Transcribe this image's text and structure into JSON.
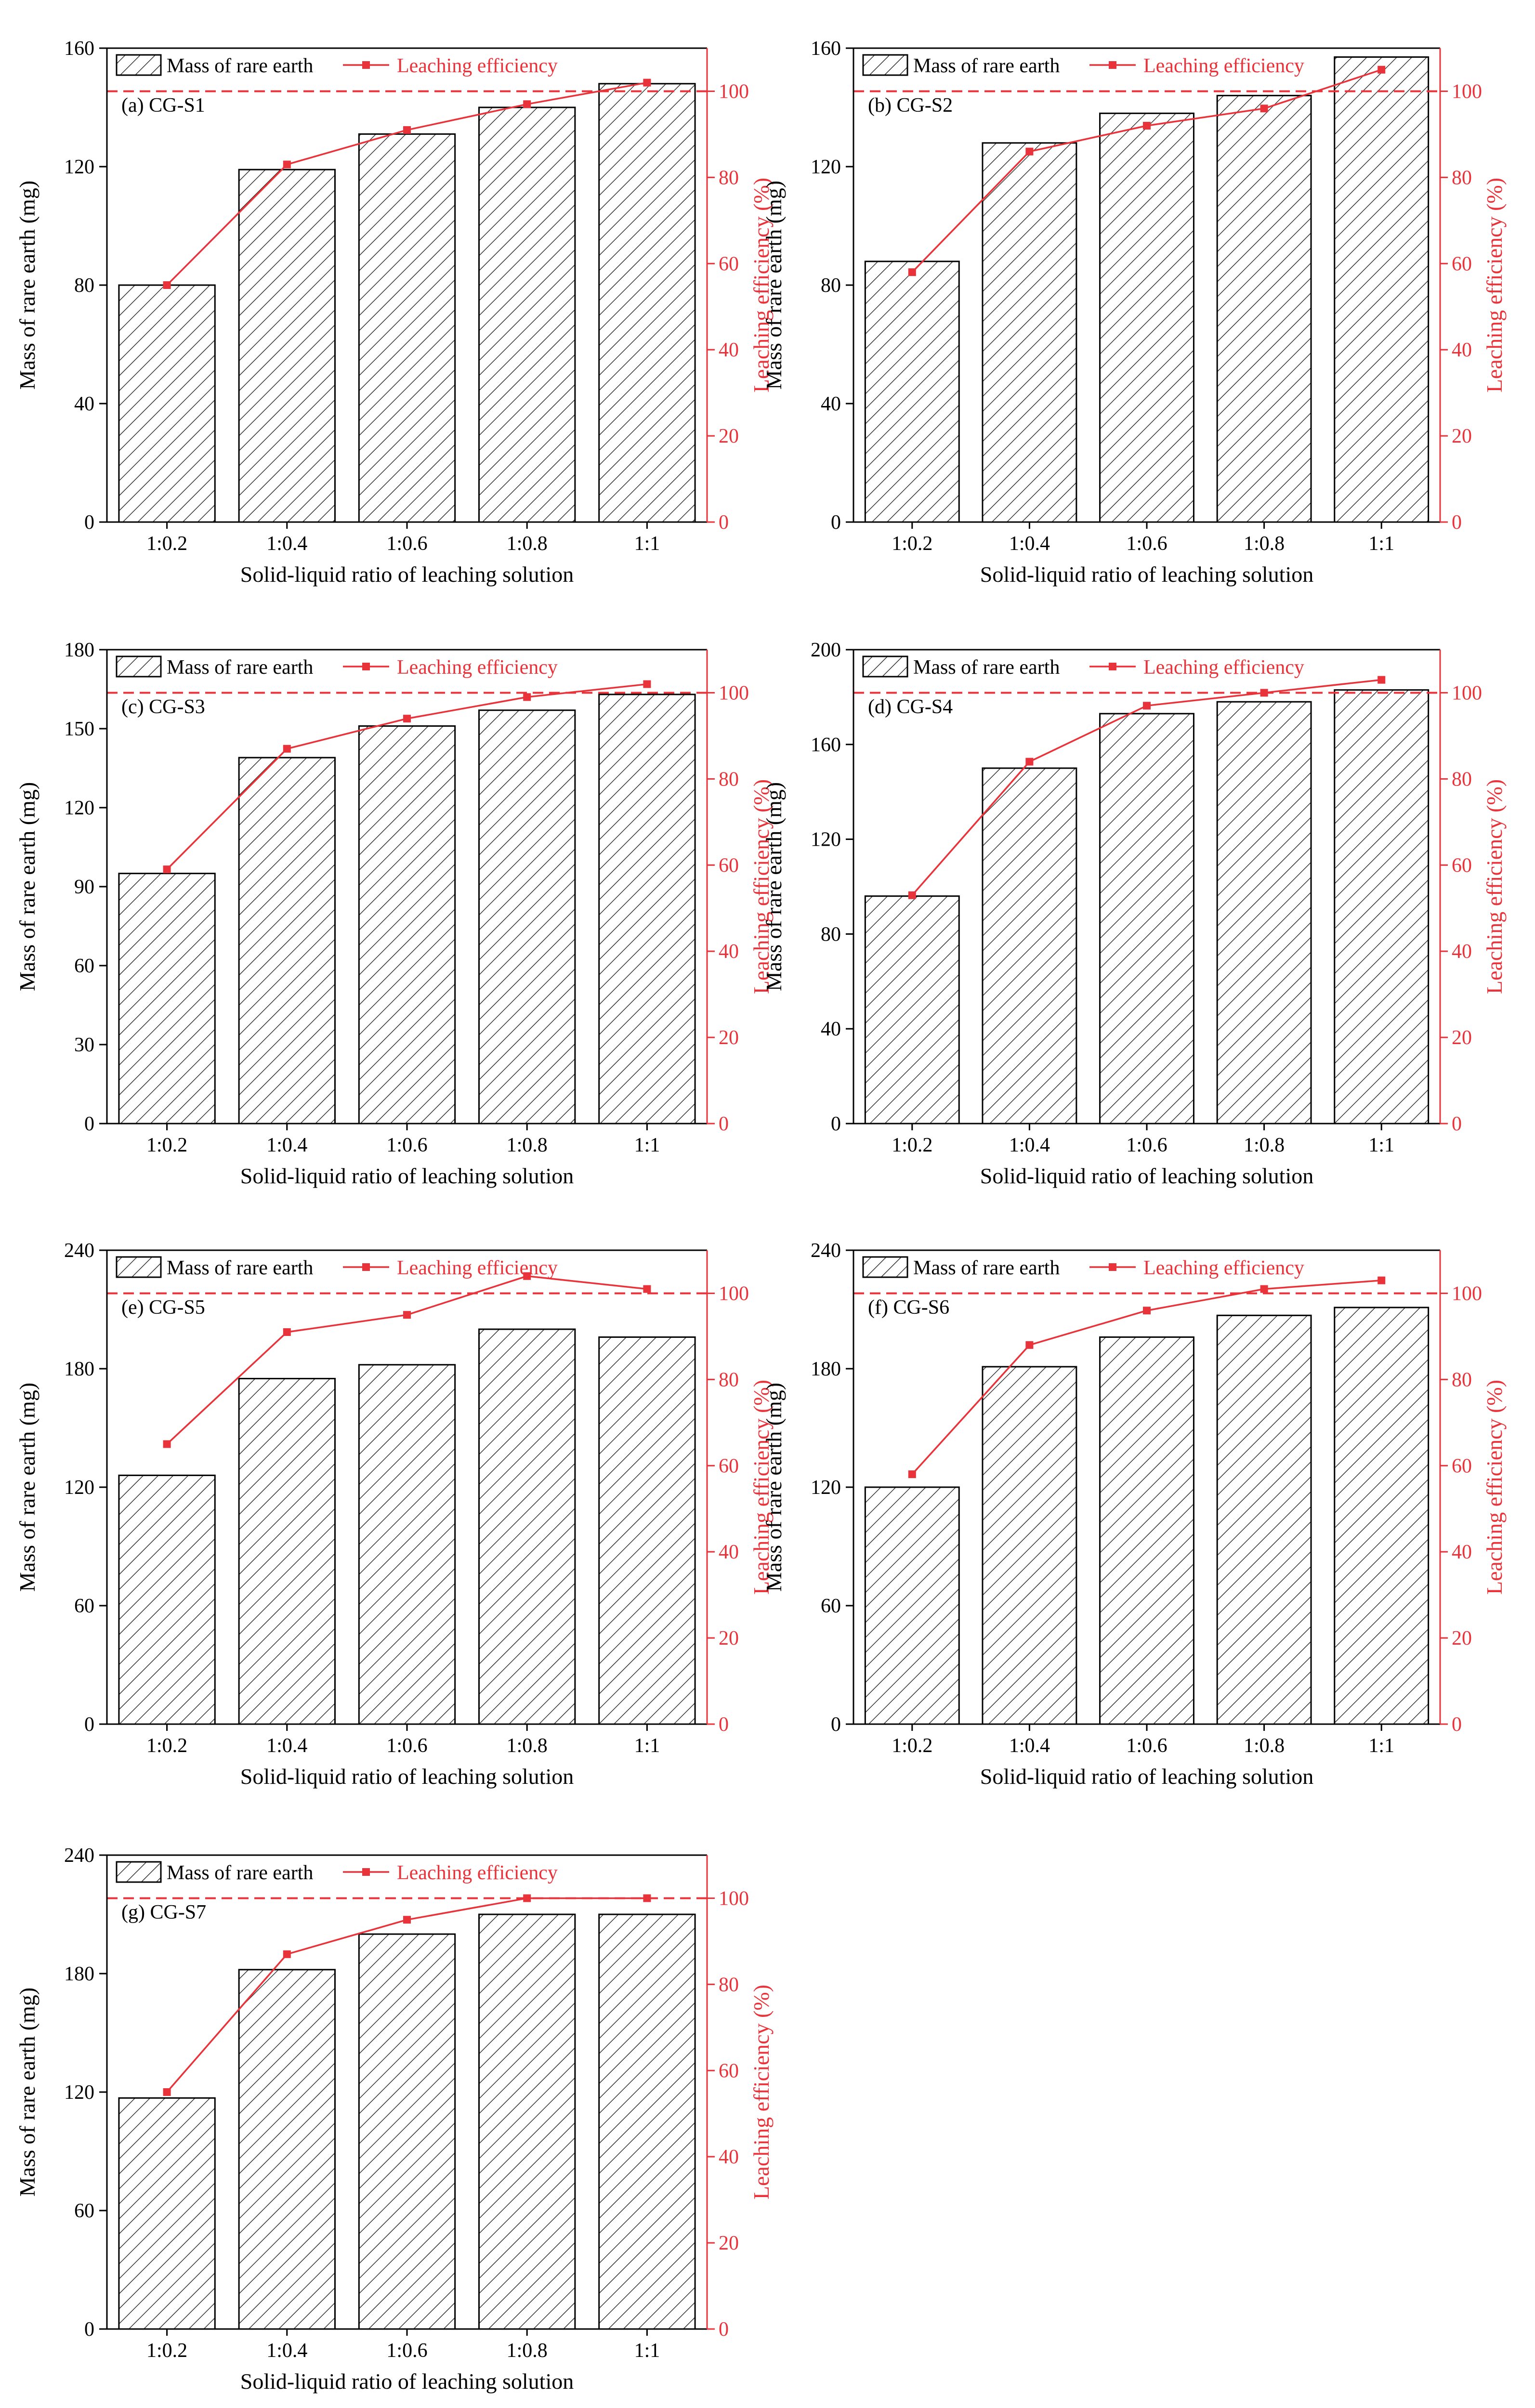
{
  "colors": {
    "bar_fill": "#ffffff",
    "bar_edge": "#000000",
    "hatch": "#333333",
    "line": "#e8333a",
    "reference": "#e8333a",
    "axis": "#000000"
  },
  "chart_data": [
    {
      "type": "bar",
      "label": "(a) CG-S1",
      "categories": [
        "1:0.2",
        "1:0.4",
        "1:0.6",
        "1:0.8",
        "1:1"
      ],
      "xlabel": "Solid-liquid ratio of leaching solution",
      "ylabel": "Mass of rare earth (mg)",
      "y2label": "Leaching efficiency (%)",
      "ylim": [
        0,
        160
      ],
      "yticks": [
        0,
        40,
        80,
        120,
        160
      ],
      "y2lim": [
        0,
        110
      ],
      "y2ticks": [
        0,
        20,
        40,
        60,
        80,
        100
      ],
      "reference_line": 100,
      "series": [
        {
          "name": "Mass of rare earth",
          "type": "bar",
          "axis": "left",
          "values": [
            80,
            119,
            131,
            140,
            148
          ]
        },
        {
          "name": "Leaching efficiency",
          "type": "line",
          "axis": "right",
          "values": [
            55,
            83,
            91,
            97,
            102
          ]
        }
      ]
    },
    {
      "type": "bar",
      "label": "(b) CG-S2",
      "categories": [
        "1:0.2",
        "1:0.4",
        "1:0.6",
        "1:0.8",
        "1:1"
      ],
      "xlabel": "Solid-liquid ratio of leaching solution",
      "ylabel": "Mass of rare earth (mg)",
      "y2label": "Leaching efficiency (%)",
      "ylim": [
        0,
        160
      ],
      "yticks": [
        0,
        40,
        80,
        120,
        160
      ],
      "y2lim": [
        0,
        110
      ],
      "y2ticks": [
        0,
        20,
        40,
        60,
        80,
        100
      ],
      "reference_line": 100,
      "series": [
        {
          "name": "Mass of rare earth",
          "type": "bar",
          "axis": "left",
          "values": [
            88,
            128,
            138,
            144,
            157
          ]
        },
        {
          "name": "Leaching efficiency",
          "type": "line",
          "axis": "right",
          "values": [
            58,
            86,
            92,
            96,
            105
          ]
        }
      ]
    },
    {
      "type": "bar",
      "label": "(c) CG-S3",
      "categories": [
        "1:0.2",
        "1:0.4",
        "1:0.6",
        "1:0.8",
        "1:1"
      ],
      "xlabel": "Solid-liquid ratio of leaching solution",
      "ylabel": "Mass of rare earth (mg)",
      "y2label": "Leaching efficiency (%)",
      "ylim": [
        0,
        180
      ],
      "yticks": [
        0,
        30,
        60,
        90,
        120,
        150,
        180
      ],
      "y2lim": [
        0,
        110
      ],
      "y2ticks": [
        0,
        20,
        40,
        60,
        80,
        100
      ],
      "reference_line": 100,
      "series": [
        {
          "name": "Mass of rare earth",
          "type": "bar",
          "axis": "left",
          "values": [
            95,
            139,
            151,
            157,
            163
          ]
        },
        {
          "name": "Leaching efficiency",
          "type": "line",
          "axis": "right",
          "values": [
            59,
            87,
            94,
            99,
            102
          ]
        }
      ]
    },
    {
      "type": "bar",
      "label": "(d) CG-S4",
      "categories": [
        "1:0.2",
        "1:0.4",
        "1:0.6",
        "1:0.8",
        "1:1"
      ],
      "xlabel": "Solid-liquid ratio of leaching solution",
      "ylabel": "Mass of rare earth (mg)",
      "y2label": "Leaching efficiency (%)",
      "ylim": [
        0,
        200
      ],
      "yticks": [
        0,
        40,
        80,
        120,
        160,
        200
      ],
      "y2lim": [
        0,
        110
      ],
      "y2ticks": [
        0,
        20,
        40,
        60,
        80,
        100
      ],
      "reference_line": 100,
      "series": [
        {
          "name": "Mass of rare earth",
          "type": "bar",
          "axis": "left",
          "values": [
            96,
            150,
            173,
            178,
            183
          ]
        },
        {
          "name": "Leaching efficiency",
          "type": "line",
          "axis": "right",
          "values": [
            53,
            84,
            97,
            100,
            103
          ]
        }
      ]
    },
    {
      "type": "bar",
      "label": "(e) CG-S5",
      "categories": [
        "1:0.2",
        "1:0.4",
        "1:0.6",
        "1:0.8",
        "1:1"
      ],
      "xlabel": "Solid-liquid ratio of leaching solution",
      "ylabel": "Mass of rare earth (mg)",
      "y2label": "Leaching efficiency (%)",
      "ylim": [
        0,
        240
      ],
      "yticks": [
        0,
        60,
        120,
        180,
        240
      ],
      "y2lim": [
        0,
        110
      ],
      "y2ticks": [
        0,
        20,
        40,
        60,
        80,
        100
      ],
      "reference_line": 100,
      "series": [
        {
          "name": "Mass of rare earth",
          "type": "bar",
          "axis": "left",
          "values": [
            126,
            175,
            182,
            200,
            196
          ]
        },
        {
          "name": "Leaching efficiency",
          "type": "line",
          "axis": "right",
          "values": [
            65,
            91,
            95,
            104,
            101
          ]
        }
      ]
    },
    {
      "type": "bar",
      "label": "(f) CG-S6",
      "categories": [
        "1:0.2",
        "1:0.4",
        "1:0.6",
        "1:0.8",
        "1:1"
      ],
      "xlabel": "Solid-liquid ratio of leaching solution",
      "ylabel": "Mass of rare earth (mg)",
      "y2label": "Leaching efficiency (%)",
      "ylim": [
        0,
        240
      ],
      "yticks": [
        0,
        60,
        120,
        180,
        240
      ],
      "y2lim": [
        0,
        110
      ],
      "y2ticks": [
        0,
        20,
        40,
        60,
        80,
        100
      ],
      "reference_line": 100,
      "series": [
        {
          "name": "Mass of rare earth",
          "type": "bar",
          "axis": "left",
          "values": [
            120,
            181,
            196,
            207,
            211
          ]
        },
        {
          "name": "Leaching efficiency",
          "type": "line",
          "axis": "right",
          "values": [
            58,
            88,
            96,
            101,
            103
          ]
        }
      ]
    },
    {
      "type": "bar",
      "label": "(g) CG-S7",
      "categories": [
        "1:0.2",
        "1:0.4",
        "1:0.6",
        "1:0.8",
        "1:1"
      ],
      "xlabel": "Solid-liquid ratio of leaching solution",
      "ylabel": "Mass of rare earth (mg)",
      "y2label": "Leaching efficiency (%)",
      "ylim": [
        0,
        240
      ],
      "yticks": [
        0,
        60,
        120,
        180,
        240
      ],
      "y2lim": [
        0,
        110
      ],
      "y2ticks": [
        0,
        20,
        40,
        60,
        80,
        100
      ],
      "reference_line": 100,
      "series": [
        {
          "name": "Mass of rare earth",
          "type": "bar",
          "axis": "left",
          "values": [
            117,
            182,
            200,
            210,
            210
          ]
        },
        {
          "name": "Leaching efficiency",
          "type": "line",
          "axis": "right",
          "values": [
            55,
            87,
            95,
            100,
            100
          ]
        }
      ]
    }
  ]
}
